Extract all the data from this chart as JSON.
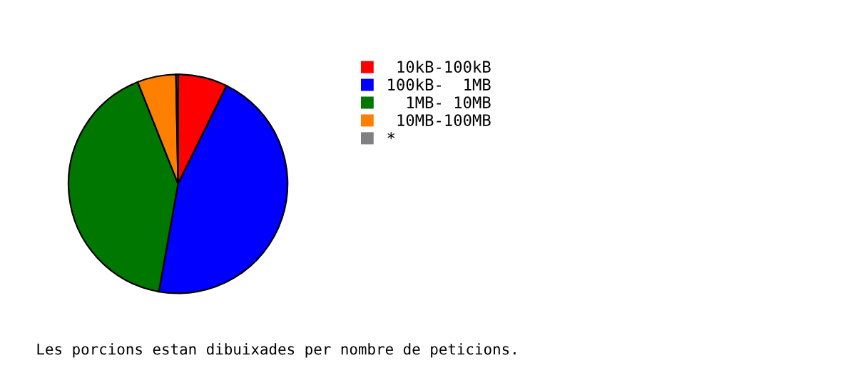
{
  "chart_data": {
    "type": "pie",
    "categories": [
      " 10kB-100kB",
      "100kB-  1MB",
      "  1MB- 10MB",
      " 10MB-100MB",
      "*"
    ],
    "values": [
      7.3,
      45.5,
      41.2,
      5.7,
      0.3
    ],
    "colors": [
      "#ff0000",
      "#0000ff",
      "#007700",
      "#ff8000",
      "#808080"
    ],
    "legend": "right",
    "annotations": [
      "Les porcions estan dibuixades per nombre de peticions."
    ]
  }
}
